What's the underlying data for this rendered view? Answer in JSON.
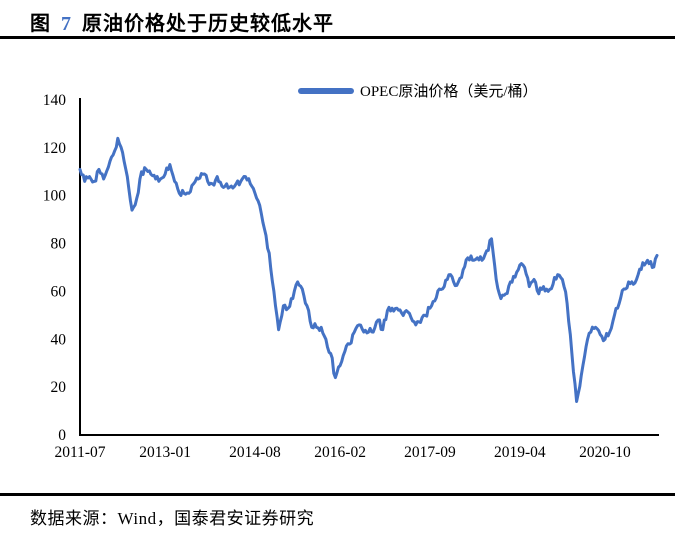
{
  "title": {
    "prefix": "图",
    "number": "7",
    "text": "原油价格处于历史较低水平",
    "number_color": "#4472C4"
  },
  "source": {
    "text": "数据来源：Wind，国泰君安证券研究"
  },
  "chart_data": {
    "type": "line",
    "title": "",
    "legend": "OPEC原油价格（美元/桶）",
    "legend_position": "top-center",
    "grid": false,
    "line_color": "#4472C4",
    "axis_color": "#000000",
    "ylim": [
      0,
      140
    ],
    "y_ticks": [
      0,
      20,
      40,
      60,
      80,
      100,
      120,
      140
    ],
    "x_tick_labels": [
      "2011-07",
      "2013-01",
      "2014-08",
      "2016-02",
      "2017-09",
      "2019-04",
      "2020-10"
    ],
    "x_tick_indices": [
      0,
      18,
      37,
      55,
      74,
      93,
      111
    ],
    "series": [
      {
        "name": "OPEC原油价格（美元/桶）",
        "x_start": "2011-07",
        "x_step": "1 month",
        "values": [
          111,
          106,
          108,
          106,
          111,
          107,
          112,
          117,
          124,
          118,
          108,
          94,
          99,
          110,
          111,
          109,
          107,
          107,
          109,
          113,
          106,
          101,
          101,
          101,
          105,
          107,
          109,
          106,
          105,
          108,
          104,
          105,
          104,
          105,
          106,
          108,
          105,
          101,
          96,
          86,
          76,
          60,
          44,
          54,
          53,
          57,
          64,
          61,
          54,
          45,
          45,
          45,
          40,
          34,
          24,
          29,
          35,
          38,
          43,
          46,
          43,
          43,
          43,
          48,
          44,
          52,
          53,
          53,
          51,
          52,
          49,
          46,
          47,
          50,
          53,
          56,
          61,
          62,
          67,
          64,
          64,
          69,
          74,
          73,
          74,
          73,
          77,
          82,
          65,
          57,
          59,
          64,
          66,
          71,
          70,
          62,
          65,
          59,
          62,
          60,
          63,
          67,
          65,
          55,
          34,
          14,
          25,
          37,
          43,
          45,
          42,
          40,
          43,
          50,
          55,
          61,
          64,
          63,
          67,
          72,
          73,
          70,
          75
        ]
      }
    ]
  }
}
